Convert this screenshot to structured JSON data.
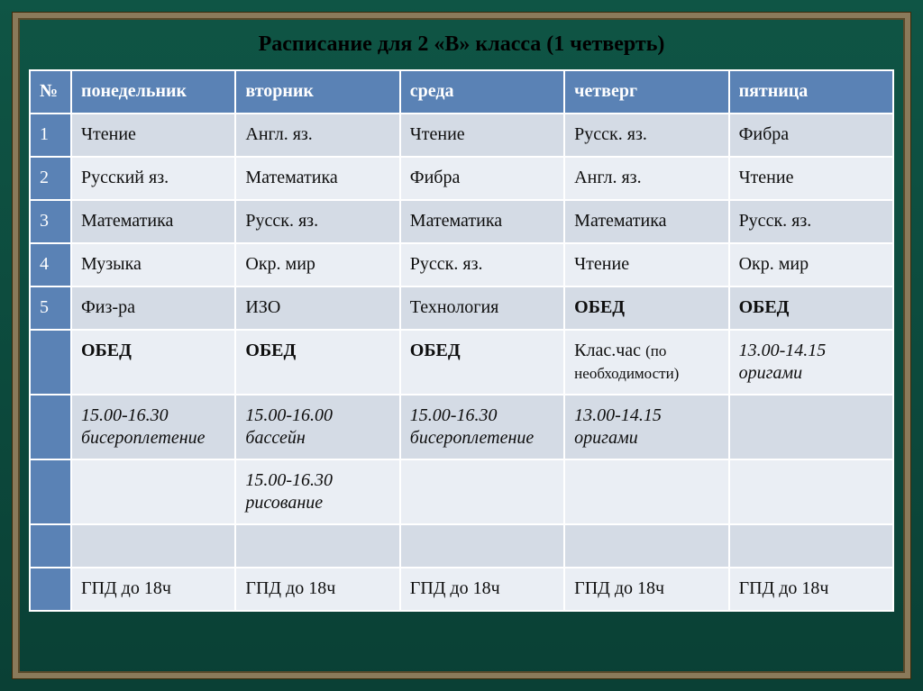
{
  "title": "Расписание  для  2 «В» класса (1 четверть)",
  "columns": [
    "№",
    "понедельник",
    "вторник",
    "среда",
    "четверг",
    "пятница"
  ],
  "rows": [
    {
      "num": "1",
      "cells": [
        {
          "text": "Чтение"
        },
        {
          "text": "Англ. яз."
        },
        {
          "text": "Чтение"
        },
        {
          "text": "Русск. яз."
        },
        {
          "text": "Фибра"
        }
      ]
    },
    {
      "num": "2",
      "cells": [
        {
          "text": "Русский яз."
        },
        {
          "text": "Математика"
        },
        {
          "text": "Фибра"
        },
        {
          "text": "Англ. яз."
        },
        {
          "text": "Чтение"
        }
      ]
    },
    {
      "num": "3",
      "cells": [
        {
          "text": "Математика"
        },
        {
          "text": "Русск. яз."
        },
        {
          "text": "Математика"
        },
        {
          "text": "Математика"
        },
        {
          "text": "Русск. яз."
        }
      ]
    },
    {
      "num": "4",
      "cells": [
        {
          "text": "Музыка"
        },
        {
          "text": "Окр. мир"
        },
        {
          "text": "Русск. яз."
        },
        {
          "text": "Чтение"
        },
        {
          "text": "Окр. мир"
        }
      ]
    },
    {
      "num": "5",
      "cells": [
        {
          "text": "Физ-ра"
        },
        {
          "text": "ИЗО"
        },
        {
          "text": "Технология"
        },
        {
          "text": "ОБЕД",
          "bold": true
        },
        {
          "text": "ОБЕД",
          "bold": true
        }
      ]
    },
    {
      "num": "",
      "cells": [
        {
          "text": "ОБЕД",
          "bold": true
        },
        {
          "text": "ОБЕД",
          "bold": true
        },
        {
          "text": "ОБЕД",
          "bold": true
        },
        {
          "text": "Клас.час ",
          "note": "(по необходимости)"
        },
        {
          "text": "13.00-14.15 оригами",
          "italic": true
        }
      ]
    },
    {
      "num": "",
      "cells": [
        {
          "text": "15.00-16.30 бисероплетение",
          "italic": true
        },
        {
          "text": "15.00-16.00 бассейн",
          "italic": true
        },
        {
          "text": "15.00-16.30 бисероплетение",
          "italic": true
        },
        {
          "text": "13.00-14.15 оригами",
          "italic": true
        },
        {
          "text": ""
        }
      ]
    },
    {
      "num": "",
      "cells": [
        {
          "text": ""
        },
        {
          "text": "15.00-16.30 рисование",
          "italic": true
        },
        {
          "text": ""
        },
        {
          "text": ""
        },
        {
          "text": ""
        }
      ]
    },
    {
      "num": "",
      "cells": [
        {
          "text": ""
        },
        {
          "text": ""
        },
        {
          "text": ""
        },
        {
          "text": ""
        },
        {
          "text": ""
        }
      ]
    },
    {
      "num": "",
      "cells": [
        {
          "text": "ГПД до 18ч"
        },
        {
          "text": "ГПД до 18ч"
        },
        {
          "text": "ГПД до 18ч"
        },
        {
          "text": "ГПД до 18ч"
        },
        {
          "text": "ГПД до 18ч"
        }
      ]
    }
  ],
  "colors": {
    "header_bg": "#5a82b5",
    "row_odd_bg": "#d4dbe5",
    "row_even_bg": "#eaeef4",
    "border": "#ffffff",
    "board_bg": "#0a4a3a",
    "frame": "#8a7a5a"
  },
  "font_family": "Times New Roman",
  "title_fontsize": 24,
  "cell_fontsize": 20
}
